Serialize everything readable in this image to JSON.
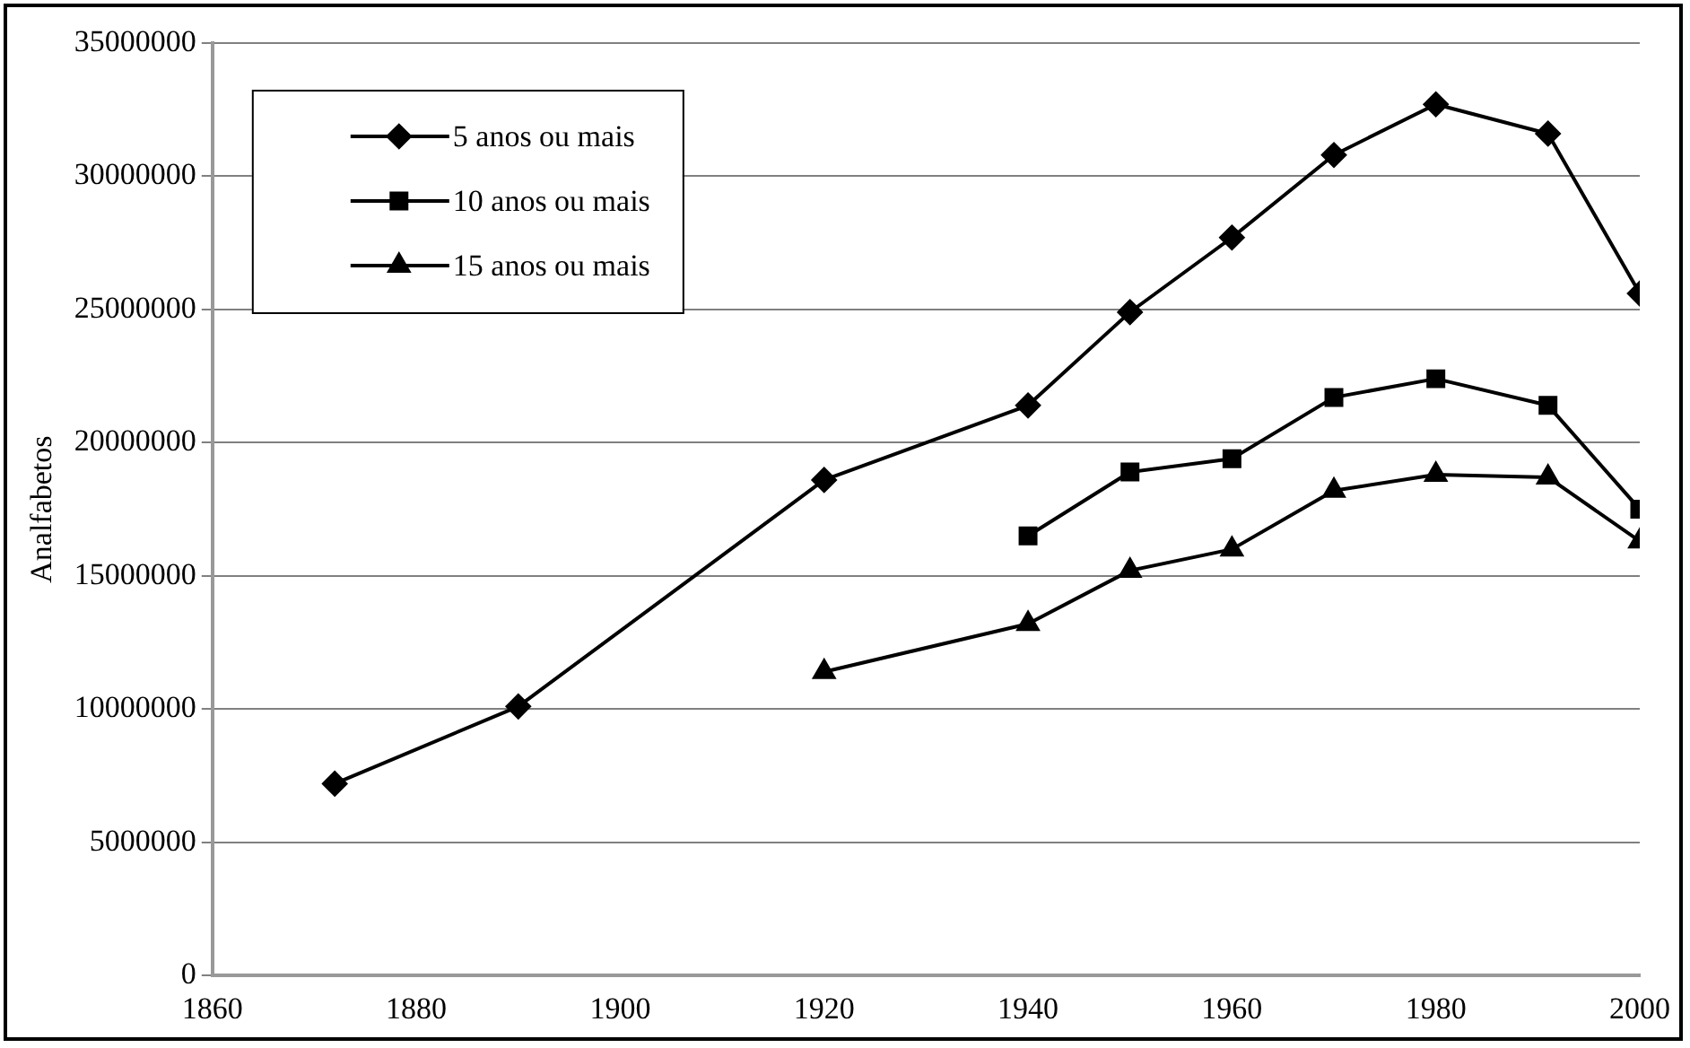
{
  "chart_data": {
    "type": "line",
    "ylabel": "Analfabetos",
    "xlim": [
      1860,
      2000
    ],
    "xticks": [
      1860,
      1880,
      1900,
      1920,
      1940,
      1960,
      1980,
      2000
    ],
    "ylim": [
      0,
      35000000
    ],
    "yticks": [
      0,
      5000000,
      10000000,
      15000000,
      20000000,
      25000000,
      30000000,
      35000000
    ],
    "grid": "y",
    "legend": "top left",
    "line_style": "solid",
    "series": [
      {
        "name": "5 anos ou mais",
        "color": "#000000",
        "marker": "diamond",
        "x": [
          1872,
          1890,
          1920,
          1940,
          1950,
          1960,
          1970,
          1980,
          1991,
          2000
        ],
        "values": [
          7200000,
          10100000,
          18600000,
          21400000,
          24900000,
          27700000,
          30800000,
          32700000,
          31600000,
          25600000
        ]
      },
      {
        "name": "10 anos ou mais",
        "color": "#000000",
        "marker": "square",
        "x": [
          1940,
          1950,
          1960,
          1970,
          1980,
          1991,
          2000
        ],
        "values": [
          16500000,
          18900000,
          19400000,
          21700000,
          22400000,
          21400000,
          17500000
        ]
      },
      {
        "name": "15 anos ou mais",
        "color": "#000000",
        "marker": "triangle",
        "x": [
          1920,
          1940,
          1950,
          1960,
          1970,
          1980,
          1991,
          2000
        ],
        "values": [
          11400000,
          13200000,
          15200000,
          16000000,
          18200000,
          18800000,
          18700000,
          16300000
        ]
      }
    ]
  }
}
